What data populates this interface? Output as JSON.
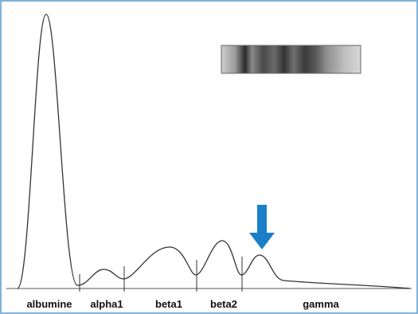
{
  "labels": [
    "albumine",
    "alpha1",
    "beta1",
    "beta2",
    "gamma"
  ]
}
